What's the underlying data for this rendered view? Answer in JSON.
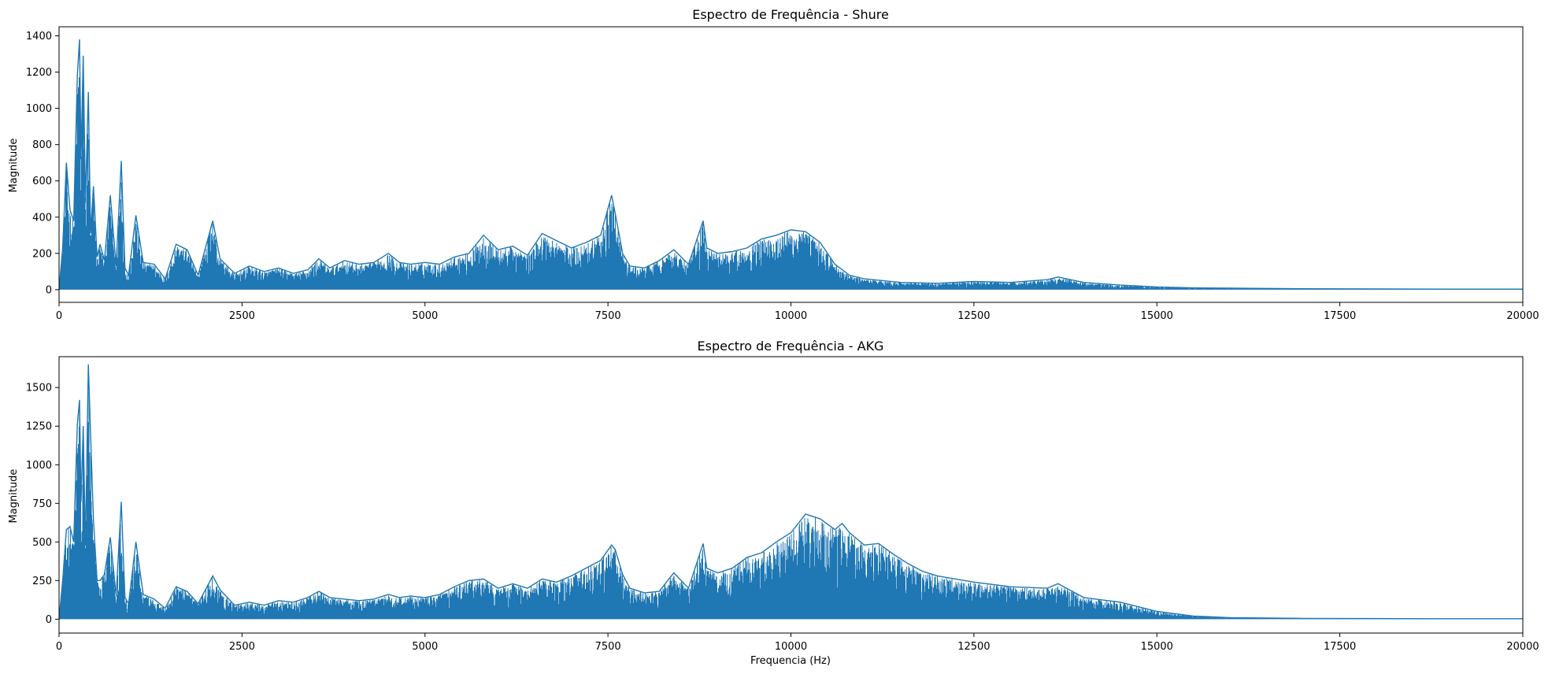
{
  "figure": {
    "background": "#ffffff"
  },
  "chart_data": [
    {
      "type": "line",
      "title": "Espectro de Frequência - Shure",
      "xlabel": "",
      "ylabel": "Magnitude",
      "xlim": [
        0,
        20000
      ],
      "ylim": [
        -70,
        1450
      ],
      "xticks": [
        0,
        2500,
        5000,
        7500,
        10000,
        12500,
        15000,
        17500,
        20000
      ],
      "yticks": [
        0,
        200,
        400,
        600,
        800,
        1000,
        1200,
        1400
      ],
      "grid": false,
      "color": "#1f77b4",
      "series": [
        {
          "x": [
            0,
            50,
            100,
            150,
            200,
            250,
            280,
            300,
            330,
            360,
            400,
            430,
            470,
            520,
            560,
            620,
            700,
            780,
            850,
            900,
            950,
            1050,
            1150,
            1300,
            1450,
            1600,
            1750,
            1900,
            2100,
            2200,
            2400,
            2600,
            2800,
            3000,
            3200,
            3400,
            3550,
            3700,
            3900,
            4100,
            4300,
            4500,
            4650,
            4800,
            5000,
            5200,
            5400,
            5600,
            5800,
            6000,
            6200,
            6400,
            6600,
            6800,
            7000,
            7200,
            7400,
            7550,
            7600,
            7700,
            7800,
            8000,
            8200,
            8400,
            8600,
            8800,
            8850,
            9000,
            9200,
            9400,
            9600,
            9800,
            10000,
            10200,
            10400,
            10600,
            10700,
            10800,
            11000,
            11500,
            12000,
            12500,
            13000,
            13500,
            13650,
            14000,
            14500,
            15000,
            15500,
            16000,
            17000,
            18000,
            19000,
            20000
          ],
          "values": [
            0,
            230,
            700,
            440,
            380,
            1180,
            1380,
            720,
            1290,
            480,
            1090,
            310,
            570,
            180,
            250,
            160,
            520,
            130,
            710,
            120,
            80,
            410,
            150,
            140,
            60,
            250,
            220,
            80,
            380,
            170,
            90,
            130,
            100,
            120,
            90,
            110,
            170,
            120,
            160,
            140,
            150,
            200,
            150,
            140,
            150,
            140,
            180,
            200,
            300,
            220,
            240,
            190,
            310,
            270,
            230,
            260,
            300,
            520,
            420,
            200,
            130,
            120,
            160,
            220,
            140,
            380,
            230,
            200,
            210,
            230,
            280,
            300,
            330,
            320,
            260,
            140,
            110,
            80,
            60,
            40,
            35,
            45,
            40,
            55,
            70,
            40,
            25,
            15,
            10,
            8,
            5,
            4,
            3,
            3
          ]
        }
      ]
    },
    {
      "type": "line",
      "title": "Espectro de Frequência - AKG",
      "xlabel": "Frequencia (Hz)",
      "ylabel": "Magnitude",
      "xlim": [
        0,
        20000
      ],
      "ylim": [
        -90,
        1700
      ],
      "xticks": [
        0,
        2500,
        5000,
        7500,
        10000,
        12500,
        15000,
        17500,
        20000
      ],
      "yticks": [
        0,
        250,
        500,
        750,
        1000,
        1250,
        1500
      ],
      "grid": false,
      "color": "#1f77b4",
      "series": [
        {
          "x": [
            0,
            50,
            100,
            150,
            200,
            250,
            280,
            300,
            330,
            360,
            400,
            430,
            470,
            520,
            560,
            620,
            700,
            780,
            850,
            900,
            950,
            1050,
            1150,
            1300,
            1450,
            1600,
            1750,
            1900,
            2100,
            2200,
            2400,
            2600,
            2800,
            3000,
            3200,
            3400,
            3550,
            3700,
            3900,
            4100,
            4300,
            4500,
            4650,
            4800,
            5000,
            5200,
            5400,
            5600,
            5800,
            6000,
            6200,
            6400,
            6600,
            6800,
            7000,
            7200,
            7400,
            7550,
            7600,
            7700,
            7800,
            8000,
            8200,
            8400,
            8600,
            8800,
            8850,
            9000,
            9200,
            9400,
            9600,
            9800,
            10000,
            10200,
            10400,
            10600,
            10700,
            10800,
            11000,
            11200,
            11400,
            11600,
            11800,
            12000,
            12500,
            13000,
            13500,
            13650,
            14000,
            14500,
            15000,
            15500,
            16000,
            17000,
            18000,
            19000,
            20000
          ],
          "values": [
            0,
            250,
            580,
            600,
            500,
            1260,
            1420,
            760,
            1250,
            480,
            1650,
            1200,
            640,
            250,
            250,
            290,
            530,
            150,
            760,
            140,
            100,
            500,
            160,
            130,
            70,
            210,
            180,
            100,
            280,
            190,
            90,
            110,
            90,
            120,
            110,
            140,
            180,
            140,
            130,
            120,
            130,
            160,
            140,
            150,
            140,
            160,
            210,
            250,
            260,
            200,
            230,
            200,
            260,
            240,
            280,
            330,
            380,
            480,
            450,
            290,
            200,
            170,
            180,
            300,
            200,
            490,
            330,
            300,
            330,
            400,
            430,
            500,
            560,
            680,
            650,
            580,
            620,
            560,
            480,
            490,
            420,
            360,
            310,
            280,
            240,
            210,
            200,
            230,
            140,
            110,
            50,
            20,
            10,
            5,
            4,
            3,
            3
          ]
        }
      ]
    }
  ]
}
